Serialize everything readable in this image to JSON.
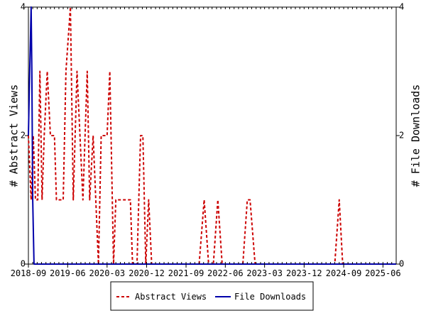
{
  "chart_data": {
    "type": "line",
    "x_ticks": [
      "2018-09",
      "2019-06",
      "2020-03",
      "2020-12",
      "2021-09",
      "2022-06",
      "2023-03",
      "2023-12",
      "2024-09",
      "2025-06"
    ],
    "x_range": [
      "2018-09",
      "2025-09"
    ],
    "left_axis": {
      "label": "# Abstract Views",
      "range": [
        0,
        4
      ],
      "ticks": [
        0,
        2,
        4
      ]
    },
    "right_axis": {
      "label": "# File Downloads",
      "range": [
        0,
        4
      ],
      "ticks": [
        0,
        2,
        4
      ]
    },
    "grid": false,
    "legend_position": "bottom-center",
    "series": [
      {
        "name": "Abstract Views",
        "color": "#cc0000",
        "style": "dashed",
        "axis": "left",
        "points": [
          [
            "2018-09-01",
            2
          ],
          [
            "2018-09-20",
            1
          ],
          [
            "2018-10-05",
            2
          ],
          [
            "2018-10-20",
            1
          ],
          [
            "2018-11-05",
            1
          ],
          [
            "2018-11-20",
            3
          ],
          [
            "2018-12-05",
            1
          ],
          [
            "2018-12-20",
            2
          ],
          [
            "2019-01-10",
            3
          ],
          [
            "2019-02-01",
            2
          ],
          [
            "2019-03-01",
            2
          ],
          [
            "2019-03-15",
            1
          ],
          [
            "2019-04-15",
            1
          ],
          [
            "2019-05-01",
            1
          ],
          [
            "2019-05-20",
            3
          ],
          [
            "2019-06-20",
            4
          ],
          [
            "2019-07-10",
            1
          ],
          [
            "2019-08-05",
            3
          ],
          [
            "2019-09-15",
            1
          ],
          [
            "2019-10-15",
            3
          ],
          [
            "2019-11-01",
            1
          ],
          [
            "2019-11-25",
            2
          ],
          [
            "2020-01-01",
            0
          ],
          [
            "2020-01-20",
            2
          ],
          [
            "2020-03-01",
            2
          ],
          [
            "2020-03-20",
            3
          ],
          [
            "2020-04-15",
            0
          ],
          [
            "2020-05-01",
            1
          ],
          [
            "2020-06-01",
            1
          ],
          [
            "2020-07-15",
            1
          ],
          [
            "2020-08-10",
            1
          ],
          [
            "2020-08-25",
            0
          ],
          [
            "2020-09-25",
            0
          ],
          [
            "2020-10-20",
            2
          ],
          [
            "2020-11-05",
            2
          ],
          [
            "2020-11-25",
            0
          ],
          [
            "2020-12-15",
            1
          ],
          [
            "2021-01-05",
            0
          ],
          [
            "2021-01-20",
            0
          ],
          [
            "2021-12-01",
            0
          ],
          [
            "2022-01-05",
            1
          ],
          [
            "2022-02-05",
            0
          ],
          [
            "2022-03-10",
            0
          ],
          [
            "2022-04-10",
            1
          ],
          [
            "2022-05-10",
            0
          ],
          [
            "2022-06-05",
            0
          ],
          [
            "2022-10-01",
            0
          ],
          [
            "2022-11-01",
            1
          ],
          [
            "2022-11-20",
            1
          ],
          [
            "2022-12-25",
            0
          ],
          [
            "2024-07-01",
            0
          ],
          [
            "2024-08-01",
            1
          ],
          [
            "2024-08-25",
            0
          ],
          [
            "2025-09-01",
            0
          ]
        ]
      },
      {
        "name": "File Downloads",
        "color": "#0000aa",
        "style": "solid",
        "axis": "right",
        "points": [
          [
            "2018-09-01",
            2
          ],
          [
            "2018-09-10",
            3
          ],
          [
            "2018-09-20",
            4
          ],
          [
            "2018-09-25",
            3
          ],
          [
            "2018-10-01",
            1
          ],
          [
            "2018-10-10",
            0
          ],
          [
            "2025-09-01",
            0
          ]
        ]
      }
    ]
  }
}
